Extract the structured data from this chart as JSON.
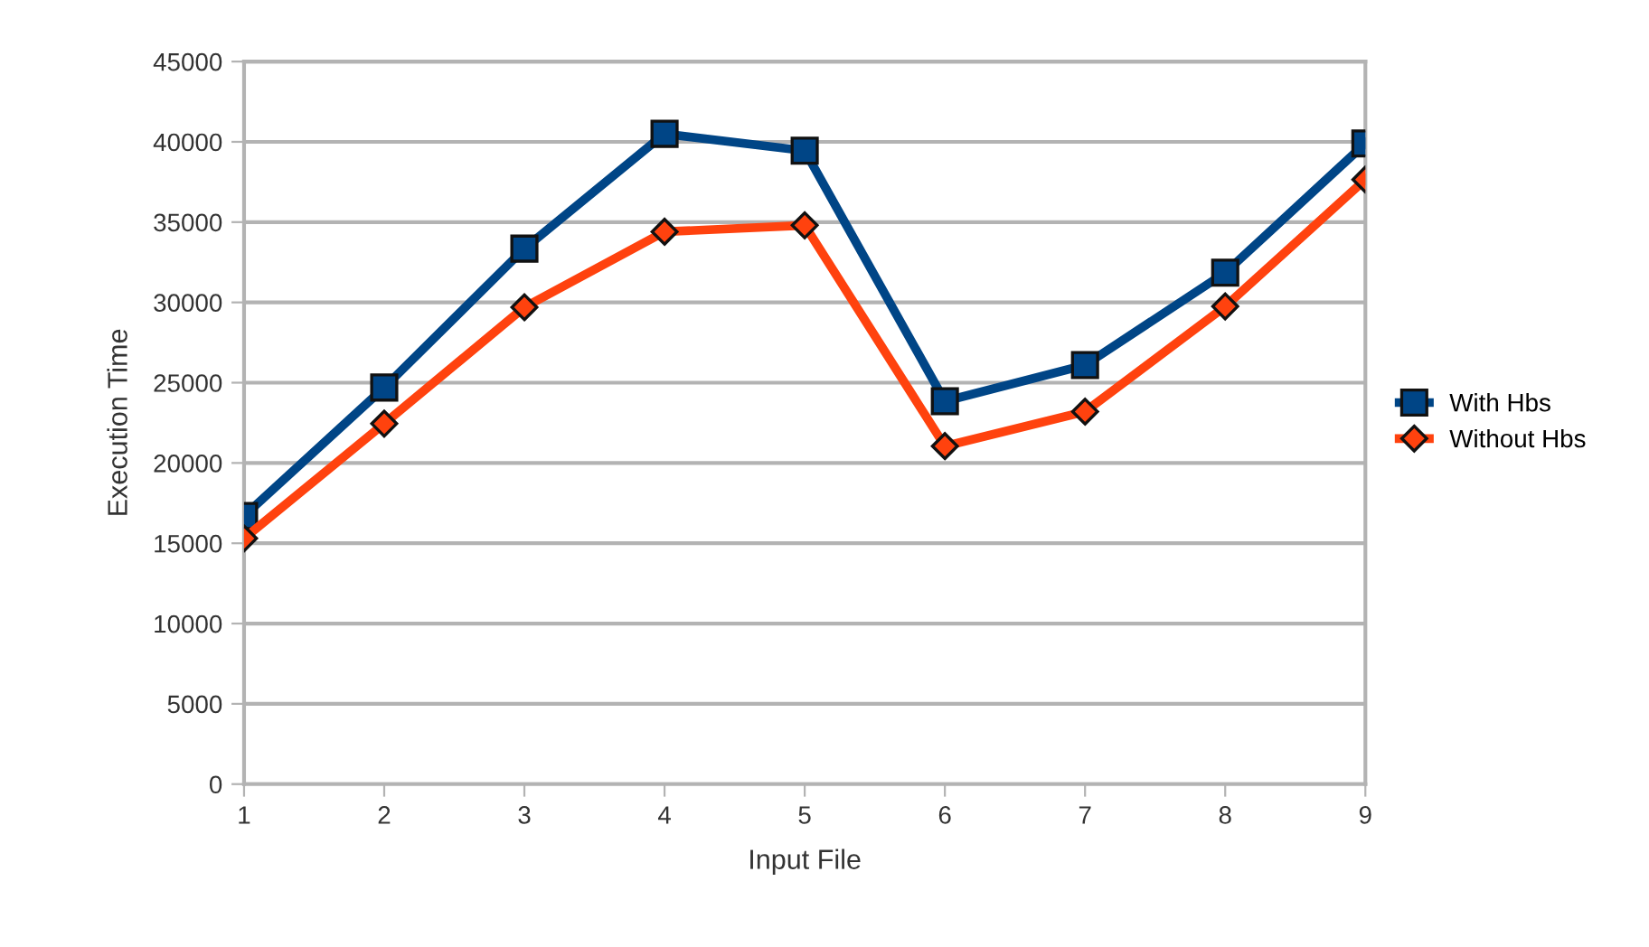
{
  "chart_data": {
    "type": "line",
    "xlabel": "Input File",
    "ylabel": "Execution Time",
    "x": [
      1,
      2,
      3,
      4,
      5,
      6,
      7,
      8,
      9
    ],
    "xlim": [
      1,
      9
    ],
    "xticks": [
      1,
      2,
      3,
      4,
      5,
      6,
      7,
      8,
      9
    ],
    "ylim": [
      0,
      45000
    ],
    "yticks": [
      0,
      5000,
      10000,
      15000,
      20000,
      25000,
      30000,
      35000,
      40000,
      45000
    ],
    "grid": "y",
    "legend": "right",
    "line_style": "solid",
    "series": [
      {
        "name": "With Hbs",
        "color": "#004586",
        "marker": "square",
        "values": [
          16700,
          24700,
          33350,
          40500,
          39450,
          23850,
          26100,
          31850,
          39900
        ]
      },
      {
        "name": "Without Hbs",
        "color": "#ff420e",
        "marker": "diamond",
        "values": [
          15300,
          22450,
          29700,
          34400,
          34800,
          21050,
          23200,
          29750,
          37650
        ]
      }
    ]
  }
}
